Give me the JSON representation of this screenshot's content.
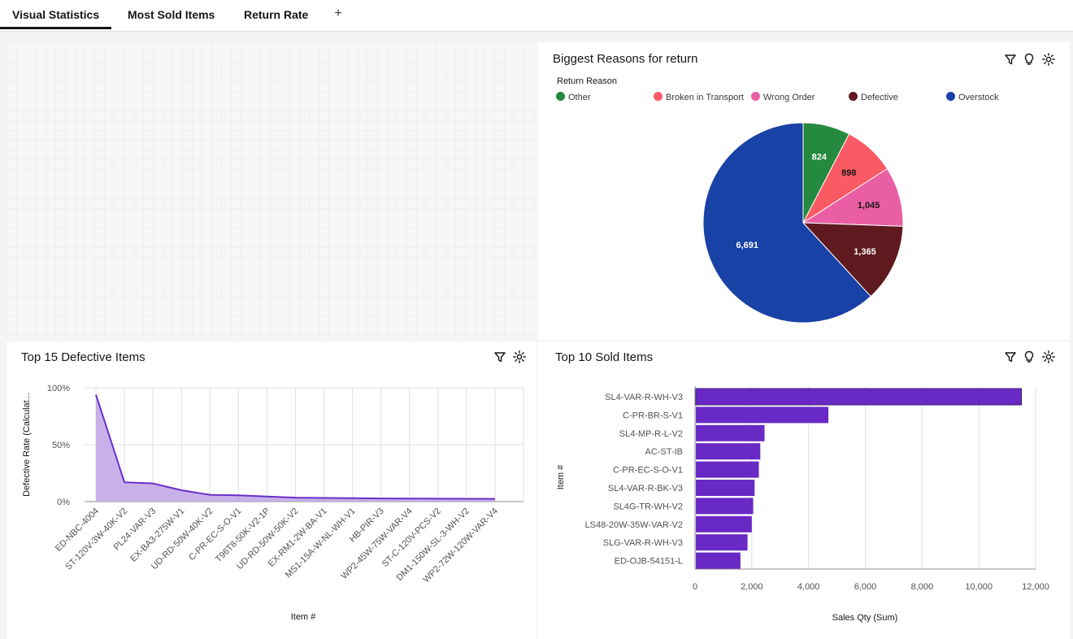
{
  "tabs": [
    {
      "label": "Visual Statistics",
      "active": true
    },
    {
      "label": "Most Sold Items",
      "active": false
    },
    {
      "label": "Return Rate",
      "active": false
    }
  ],
  "add_tab_label": "+",
  "pie_panel": {
    "title": "Biggest Reasons for return",
    "legend_title": "Return Reason",
    "icons": [
      "filter-icon",
      "lightbulb-icon",
      "settings-icon"
    ]
  },
  "defective_panel": {
    "title": "Top 15 Defective Items",
    "icons": [
      "filter-icon",
      "settings-icon"
    ]
  },
  "sold_panel": {
    "title": "Top 10 Sold Items",
    "icons": [
      "filter-icon",
      "lightbulb-icon",
      "settings-icon"
    ]
  },
  "chart_data": [
    {
      "type": "pie",
      "title": "Biggest Reasons for return",
      "legend_title": "Return Reason",
      "legend_position": "top",
      "slices": [
        {
          "label": "Other",
          "value": 824,
          "display": "824",
          "color": "#25893f"
        },
        {
          "label": "Broken in Transport",
          "value": 898,
          "display": "898",
          "color": "#fa5a63"
        },
        {
          "label": "Wrong Order",
          "value": 1045,
          "display": "1,045",
          "color": "#ea5fa3"
        },
        {
          "label": "Defective",
          "value": 1365,
          "display": "1,365",
          "color": "#5f1a1f"
        },
        {
          "label": "Overstock",
          "value": 6691,
          "display": "6,691",
          "color": "#1942a6"
        }
      ]
    },
    {
      "type": "area",
      "title": "Top 15 Defective Items",
      "xlabel": "Item #",
      "ylabel": "Defective Rate (Calculat...",
      "ylim": [
        0,
        100
      ],
      "y_ticks": [
        "0%",
        "50%",
        "100%"
      ],
      "grid": true,
      "color": "#6b2fc7",
      "fill": "#c1a9e6",
      "categories": [
        "ED-NBC-4004",
        "ST-120V-3W-40K-V2",
        "PL24-VAR-V3",
        "EX-BA3-275W-V1",
        "UD-RD-50W-40K-V2",
        "C-PR-EC-S-O-V1",
        "T96T8-50K-V2-1P",
        "UD-RD-50W-50K-V2",
        "EX-RM1-2W-BA-V1",
        "MS1-15A-W-NL-WH-V1",
        "HB-PIR-V3",
        "WP2-45W-75W-VAR-V4",
        "ST-C-120V-PCS-V2",
        "DM1-150W-SL-3-WH-V2",
        "WP2-72W-120W-VAR-V4"
      ],
      "values": [
        94,
        17,
        16,
        10,
        6,
        5.5,
        4.5,
        3.5,
        3.2,
        3.0,
        2.8,
        2.7,
        2.6,
        2.5,
        2.4
      ]
    },
    {
      "type": "bar",
      "orientation": "horizontal",
      "title": "Top 10 Sold Items",
      "xlabel": "Sales Qty (Sum)",
      "ylabel": "Item #",
      "xlim": [
        0,
        12000
      ],
      "x_ticks": [
        "0",
        "2,000",
        "4,000",
        "6,000",
        "8,000",
        "10,000",
        "12,000"
      ],
      "grid": true,
      "color": "#6929c4",
      "categories": [
        "SL4-VAR-R-WH-V3",
        "C-PR-BR-S-V1",
        "SL4-MP-R-L-V2",
        "AC-ST-IB",
        "C-PR-EC-S-O-V1",
        "SL4-VAR-R-BK-V3",
        "SL4G-TR-WH-V2",
        "LS48-20W-35W-VAR-V2",
        "SLG-VAR-R-WH-V3",
        "ED-OJB-54151-L"
      ],
      "values": [
        11500,
        4700,
        2450,
        2300,
        2250,
        2100,
        2050,
        2000,
        1850,
        1600
      ]
    }
  ]
}
